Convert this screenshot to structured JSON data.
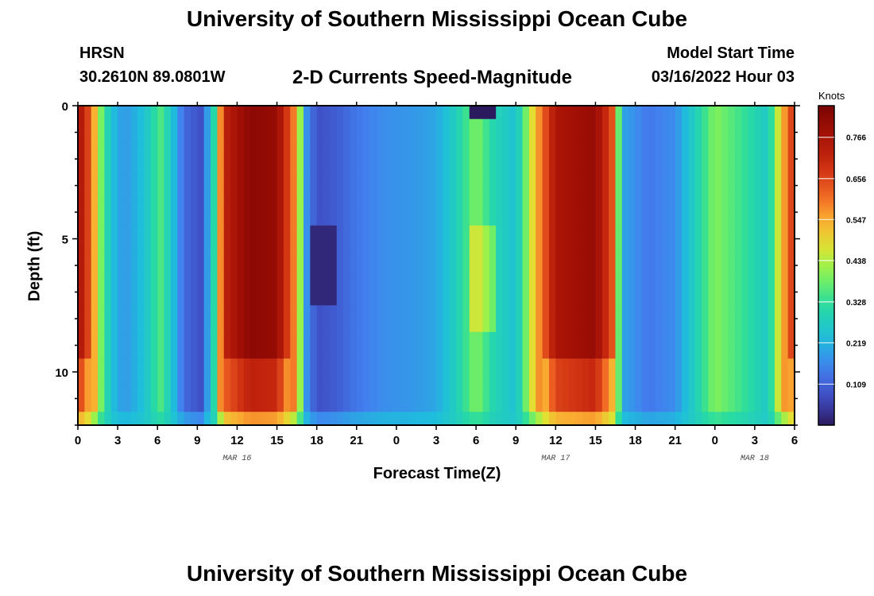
{
  "header": {
    "title": "University of Southern Mississippi Ocean Cube",
    "station": "HRSN",
    "coords": "30.2610N  89.0801W",
    "plot_title": "2-D Currents Speed-Magnitude",
    "model_start_label": "Model Start Time",
    "model_start_value": "03/16/2022 Hour 03"
  },
  "footer": {
    "title": "University of Southern Mississippi Ocean Cube"
  },
  "colors": {
    "min": "#2b1a5e",
    "max": "#7a0403"
  },
  "chart_data": {
    "type": "heatmap",
    "title": "2-D Currents Speed-Magnitude",
    "xlabel": "Forecast Time(Z)",
    "ylabel": "Depth (ft)",
    "x_range_hours": [
      0,
      54
    ],
    "y_range_ft": [
      0,
      12
    ],
    "x_ticks": [
      {
        "h": 0,
        "label": "0"
      },
      {
        "h": 3,
        "label": "3"
      },
      {
        "h": 6,
        "label": "6"
      },
      {
        "h": 9,
        "label": "9"
      },
      {
        "h": 12,
        "label": "12"
      },
      {
        "h": 15,
        "label": "15"
      },
      {
        "h": 18,
        "label": "18"
      },
      {
        "h": 21,
        "label": "21"
      },
      {
        "h": 24,
        "label": "0"
      },
      {
        "h": 27,
        "label": "3"
      },
      {
        "h": 30,
        "label": "6"
      },
      {
        "h": 33,
        "label": "9"
      },
      {
        "h": 36,
        "label": "12"
      },
      {
        "h": 39,
        "label": "15"
      },
      {
        "h": 42,
        "label": "18"
      },
      {
        "h": 45,
        "label": "21"
      },
      {
        "h": 48,
        "label": "0"
      },
      {
        "h": 51,
        "label": "3"
      },
      {
        "h": 54,
        "label": "6"
      }
    ],
    "date_labels": [
      {
        "h": 12,
        "label": "MAR 16"
      },
      {
        "h": 36,
        "label": "MAR 17"
      },
      {
        "h": 51,
        "label": "MAR 18"
      }
    ],
    "y_ticks": [
      {
        "v": 0,
        "label": "0"
      },
      {
        "v": 5,
        "label": "5"
      },
      {
        "v": 10,
        "label": "10"
      }
    ],
    "colorbar": {
      "units": "Knots",
      "min": 0,
      "max": 0.85,
      "ticks": [
        {
          "v": 0.109,
          "label": "0.109"
        },
        {
          "v": 0.219,
          "label": "0.219"
        },
        {
          "v": 0.328,
          "label": "0.328"
        },
        {
          "v": 0.438,
          "label": "0.438"
        },
        {
          "v": 0.547,
          "label": "0.547"
        },
        {
          "v": 0.656,
          "label": "0.656"
        },
        {
          "v": 0.766,
          "label": "0.766"
        }
      ]
    },
    "depth_bands_ft": [
      0,
      0.5,
      1.5,
      2.5,
      3.5,
      4.5,
      5.5,
      6.5,
      7.5,
      8.5,
      9.5,
      10.5,
      11.5,
      12
    ],
    "speed_profile": [
      {
        "h": 0,
        "v": 0.78
      },
      {
        "h": 1,
        "v": 0.62
      },
      {
        "h": 1.7,
        "v": 0.4
      },
      {
        "h": 2.5,
        "v": 0.24
      },
      {
        "h": 3.5,
        "v": 0.18
      },
      {
        "h": 5,
        "v": 0.24
      },
      {
        "h": 6.2,
        "v": 0.36
      },
      {
        "h": 7,
        "v": 0.26
      },
      {
        "h": 8,
        "v": 0.12
      },
      {
        "h": 9.3,
        "v": 0.08
      },
      {
        "h": 10.3,
        "v": 0.32
      },
      {
        "h": 11,
        "v": 0.72
      },
      {
        "h": 13,
        "v": 0.82
      },
      {
        "h": 15,
        "v": 0.8
      },
      {
        "h": 16.5,
        "v": 0.55
      },
      {
        "h": 17.2,
        "v": 0.18
      },
      {
        "h": 18,
        "v": 0.08
      },
      {
        "h": 19.5,
        "v": 0.1
      },
      {
        "h": 21,
        "v": 0.14
      },
      {
        "h": 23,
        "v": 0.17
      },
      {
        "h": 25,
        "v": 0.18
      },
      {
        "h": 27,
        "v": 0.2
      },
      {
        "h": 28.5,
        "v": 0.28
      },
      {
        "h": 30,
        "v": 0.4
      },
      {
        "h": 31.3,
        "v": 0.3
      },
      {
        "h": 33,
        "v": 0.24
      },
      {
        "h": 34.6,
        "v": 0.55
      },
      {
        "h": 36,
        "v": 0.76
      },
      {
        "h": 39,
        "v": 0.8
      },
      {
        "h": 40.4,
        "v": 0.62
      },
      {
        "h": 41,
        "v": 0.2
      },
      {
        "h": 43,
        "v": 0.14
      },
      {
        "h": 45,
        "v": 0.17
      },
      {
        "h": 46.5,
        "v": 0.28
      },
      {
        "h": 48,
        "v": 0.4
      },
      {
        "h": 50,
        "v": 0.34
      },
      {
        "h": 52,
        "v": 0.26
      },
      {
        "h": 53,
        "v": 0.52
      },
      {
        "h": 54,
        "v": 0.7
      }
    ]
  }
}
